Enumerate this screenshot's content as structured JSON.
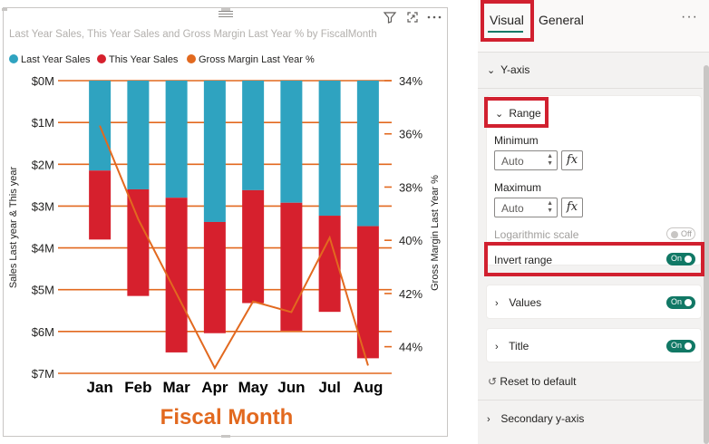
{
  "visual": {
    "title": "Last Year Sales, This Year Sales and Gross Margin Last Year % by FiscalMonth",
    "legend": [
      {
        "label": "Last Year Sales",
        "color": "#2fa3c0"
      },
      {
        "label": "This Year Sales",
        "color": "#d6202d"
      },
      {
        "label": "Gross Margin Last Year %",
        "color": "#e2691f"
      }
    ],
    "header_icons": [
      "filter-icon",
      "focus-mode-icon",
      "more-options-icon"
    ]
  },
  "chart_data": {
    "type": "bar",
    "bar_mode": "stacked",
    "categories": [
      "Jan",
      "Feb",
      "Mar",
      "Apr",
      "May",
      "Jun",
      "Jul",
      "Aug"
    ],
    "series": [
      {
        "name": "Last Year Sales",
        "axis": "left",
        "values": [
          2.15,
          2.6,
          2.8,
          3.38,
          2.62,
          2.92,
          3.23,
          3.48
        ]
      },
      {
        "name": "This Year Sales",
        "axis": "left",
        "values": [
          1.65,
          2.55,
          3.7,
          2.66,
          2.7,
          3.06,
          2.3,
          3.16
        ]
      },
      {
        "name": "Gross Margin Last Year %",
        "axis": "right",
        "type": "line",
        "values": [
          35.7,
          39.2,
          42.0,
          44.8,
          42.3,
          42.7,
          39.9,
          44.7
        ]
      }
    ],
    "y_left": {
      "label": "Sales Last year & This year",
      "ticks": [
        "$0M",
        "$1M",
        "$2M",
        "$3M",
        "$4M",
        "$5M",
        "$6M",
        "$7M"
      ],
      "min": 0,
      "max": 7,
      "inverted": true
    },
    "y_right": {
      "label": "Gross Margin Last Year %",
      "ticks": [
        "34%",
        "36%",
        "38%",
        "40%",
        "42%",
        "44%"
      ],
      "min": 34,
      "max": 45,
      "inverted": true
    },
    "x_label": "Fiscal Month",
    "grid": true
  },
  "pane": {
    "tabs": {
      "visual": "Visual",
      "general": "General"
    },
    "more": "···",
    "y_axis": "Y-axis",
    "range": "Range",
    "minimum_label": "Minimum",
    "minimum_value": "Auto",
    "maximum_label": "Maximum",
    "maximum_value": "Auto",
    "fx": "fx",
    "log_scale": "Logarithmic scale",
    "log_scale_state": "Off",
    "invert_range": "Invert range",
    "invert_state": "On",
    "values": "Values",
    "values_state": "On",
    "title": "Title",
    "title_state": "On",
    "reset": "Reset to default",
    "secondary_y_axis": "Secondary y-axis"
  }
}
